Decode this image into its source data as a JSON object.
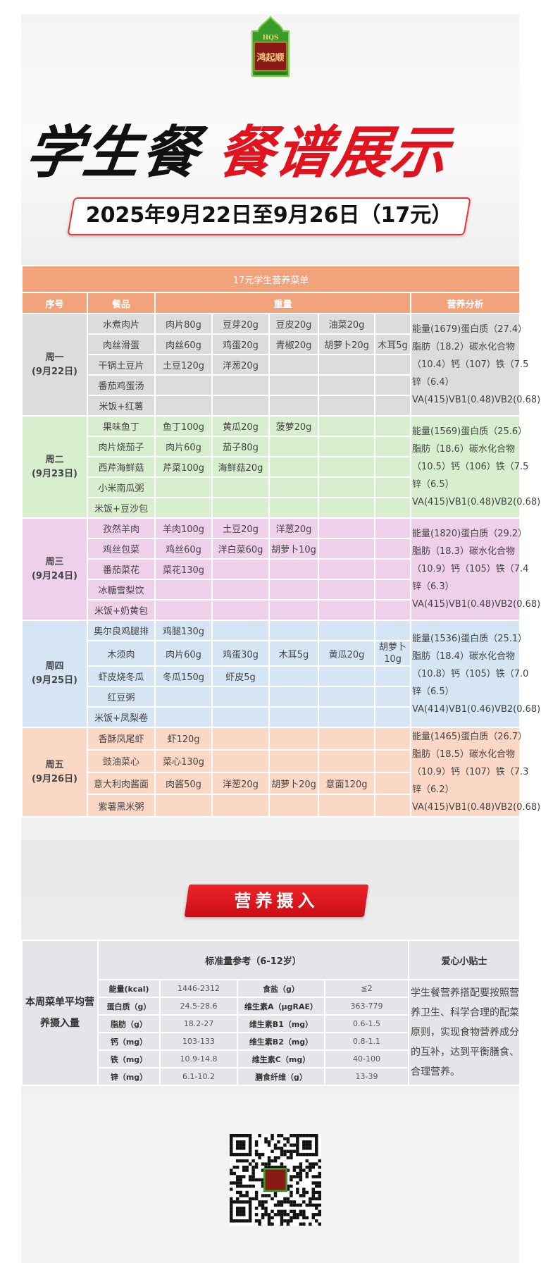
{
  "brand": {
    "logo_text": "鸿起顺",
    "logo_abbr": "HQS"
  },
  "header": {
    "title_black": "学生餐",
    "title_red": "餐谱展示",
    "date_range": "2025年9月22日至9月26日（17元）"
  },
  "menu": {
    "title": "17元学生营养菜单",
    "columns": {
      "index": "序号",
      "dish": "餐品",
      "weight": "重量",
      "nutrition": "营养分析"
    },
    "days": [
      {
        "day": "周一",
        "date": "(9月22日)",
        "color": "#dcdcdc",
        "dishes": [
          [
            "水煮肉片",
            "肉片80g",
            "豆芽20g",
            "豆皮20g",
            "油菜20g",
            ""
          ],
          [
            "肉丝滑蛋",
            "肉丝60g",
            "鸡蛋20g",
            "青椒20g",
            "胡萝卜20g",
            "木耳5g"
          ],
          [
            "干锅土豆片",
            "土豆120g",
            "洋葱20g",
            "",
            "",
            ""
          ],
          [
            "番茄鸡蛋汤",
            "",
            "",
            "",
            "",
            ""
          ],
          [
            "米饭+红薯",
            "",
            "",
            "",
            "",
            ""
          ]
        ],
        "nutrition": [
          "能量(1679)蛋白质（27.4）",
          "脂肪（18.2）碳水化合物",
          "（10.4）钙（107）铁（7.5",
          "锌（6.4）",
          "VA(415)VB1(0.48)VB2(0.68)"
        ]
      },
      {
        "day": "周二",
        "date": "(9月23日)",
        "color": "#d8efcf",
        "dishes": [
          [
            "果味鱼丁",
            "鱼丁100g",
            "黄瓜20g",
            "菠萝20g",
            "",
            ""
          ],
          [
            "肉片烧茄子",
            "肉片60g",
            "茄子80g",
            "",
            "",
            ""
          ],
          [
            "西芹海鲜菇",
            "芹菜100g",
            "海鲜菇20g",
            "",
            "",
            ""
          ],
          [
            "小米南瓜粥",
            "",
            "",
            "",
            "",
            ""
          ],
          [
            "米饭+豆沙包",
            "",
            "",
            "",
            "",
            ""
          ]
        ],
        "nutrition": [
          "能量(1569)蛋白质（25.6）",
          "脂肪（18.6）碳水化合物",
          "（10.5）钙（106）铁（7.5",
          "锌（6.5）",
          "VA(415)VB1(0.48)VB2(0.68)"
        ]
      },
      {
        "day": "周三",
        "date": "(9月24日)",
        "color": "#eed0ea",
        "dishes": [
          [
            "孜然羊肉",
            "羊肉100g",
            "土豆20g",
            "洋葱20g",
            "",
            ""
          ],
          [
            "鸡丝包菜",
            "鸡丝60g",
            "洋白菜60g",
            "胡萝卜10g",
            "",
            ""
          ],
          [
            "番茄菜花",
            "菜花130g",
            "",
            "",
            "",
            ""
          ],
          [
            "冰糖雪梨饮",
            "",
            "",
            "",
            "",
            ""
          ],
          [
            "米饭+奶黄包",
            "",
            "",
            "",
            "",
            ""
          ]
        ],
        "nutrition": [
          "能量(1820)蛋白质（29.2）",
          "脂肪（18.3）碳水化合物",
          "（10.9）钙（105）铁（7.4",
          "锌（6.3）",
          "VA(415)VB1(0.48)VB2(0.68)"
        ]
      },
      {
        "day": "周四",
        "date": "(9月25日)",
        "color": "#d5e5f3",
        "dishes": [
          [
            "奥尔良鸡腿排",
            "鸡腿130g",
            "",
            "",
            "",
            ""
          ],
          [
            "木须肉",
            "肉片60g",
            "鸡蛋30g",
            "木耳5g",
            "黄瓜20g",
            "胡萝卜10g"
          ],
          [
            "虾皮烧冬瓜",
            "冬瓜150g",
            "虾皮5g",
            "",
            "",
            ""
          ],
          [
            "红豆粥",
            "",
            "",
            "",
            "",
            ""
          ],
          [
            "米饭+凤梨卷",
            "",
            "",
            "",
            "",
            ""
          ]
        ],
        "nutrition": [
          "能量(1536)蛋白质（25.1）",
          "脂肪（18.4）碳水化合物",
          "（10.8）钙（105）铁（7.0",
          "锌（6.5）",
          "VA(414)VB1(0.46)VB2(0.68)"
        ]
      },
      {
        "day": "周五",
        "date": "(9月26日)",
        "color": "#fbd8c6",
        "dishes": [
          [
            "香酥凤尾虾",
            "虾120g",
            "",
            "",
            "",
            ""
          ],
          [
            "豉油菜心",
            "菜心130g",
            "",
            "",
            "",
            ""
          ],
          [
            "意大利肉酱面",
            "肉酱50g",
            "洋葱20g",
            "胡萝卜20g",
            "意面120g",
            ""
          ],
          [
            "紫薯黑米粥",
            "",
            "",
            "",
            "",
            ""
          ]
        ],
        "nutrition": [
          "能量(1465)蛋白质（26.7）",
          "脂肪（18.5）碳水化合物",
          "（10.9）钙（107）铁（7.3",
          "锌（6.2）",
          "VA(415)VB1(0.48)VB2(0.68)"
        ]
      }
    ]
  },
  "intake": {
    "banner": "营养摄入",
    "row_label": "本周菜单平均营养摄入量",
    "standard_header": "标准量参考（6-12岁）",
    "tips_header": "爱心小贴士",
    "tips": "学生餐营养搭配要按照营养卫生、科学合理的配菜原则，实现食物营养成分的互补，达到平衡膳食、合理营养。",
    "rows": [
      [
        "能量(kcal)",
        "1446-2312",
        "食盐（g）",
        "≦2"
      ],
      [
        "蛋白质（g）",
        "24.5-28.6",
        "维生素A（μgRAE）",
        "363-779"
      ],
      [
        "脂肪（g）",
        "18.2-27",
        "维生素B1（mg）",
        "0.6-1.5"
      ],
      [
        "钙（mg）",
        "103-133",
        "维生素B2（mg）",
        "0.8-1.1"
      ],
      [
        "铁（mg）",
        "10.9-14.8",
        "维生素C（mg）",
        "40-100"
      ],
      [
        "锌（mg）",
        "6.1-10.2",
        "膳食纤维（g）",
        "13-39"
      ]
    ]
  },
  "footer": {
    "qr_icon": "qr-code"
  }
}
